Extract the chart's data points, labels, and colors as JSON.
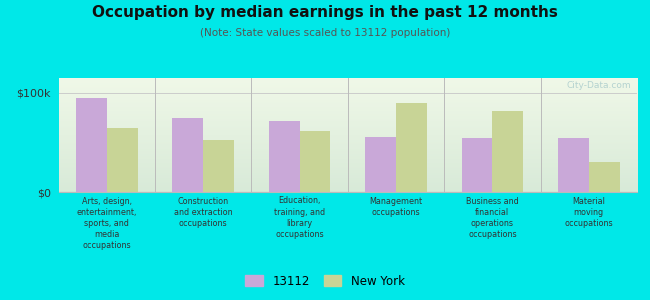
{
  "title": "Occupation by median earnings in the past 12 months",
  "subtitle": "(Note: State values scaled to 13112 population)",
  "categories": [
    "Arts, design,\nentertainment,\nsports, and\nmedia\noccupations",
    "Construction\nand extraction\noccupations",
    "Education,\ntraining, and\nlibrary\noccupations",
    "Management\noccupations",
    "Business and\nfinancial\noperations\noccupations",
    "Material\nmoving\noccupations"
  ],
  "values_13112": [
    95000,
    75000,
    72000,
    55000,
    54000,
    54000
  ],
  "values_ny": [
    65000,
    52000,
    62000,
    90000,
    82000,
    30000
  ],
  "color_13112": "#c9a8d8",
  "color_ny": "#c8d496",
  "background_outer": "#00e8e8",
  "background_plot_top": "#f0f8e8",
  "background_plot_bottom": "#d8ead8",
  "ylim": [
    0,
    115000
  ],
  "ytick_vals": [
    0,
    100000
  ],
  "ytick_labels": [
    "$0",
    "$100k"
  ],
  "legend_labels": [
    "13112",
    "New York"
  ],
  "watermark": "City-Data.com",
  "bar_width": 0.32
}
